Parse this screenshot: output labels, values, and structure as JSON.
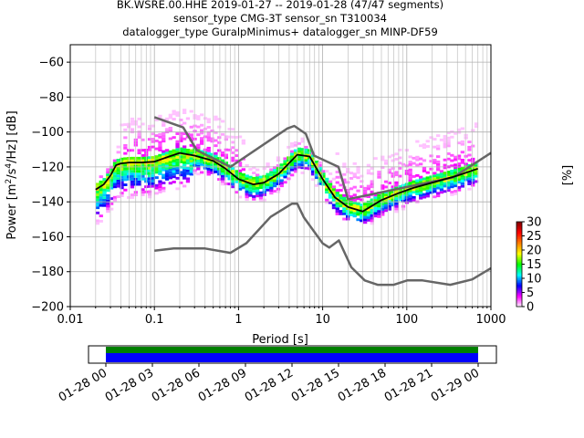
{
  "chart_data": {
    "type": "heatmap",
    "title_lines": [
      "BK.WSRE.00.HHE   2019-01-27 -- 2019-01-28  (47/47 segments)",
      "sensor_type CMG-3T sensor_sn T310034",
      "datalogger_type GuralpMinimus+ datalogger_sn MINP-DF59"
    ],
    "xlabel": "Period [s]",
    "ylabel_parts": [
      "Power [m",
      "2",
      "/s",
      "4",
      "/Hz] [dB]"
    ],
    "x_scale": "log",
    "xlim": [
      0.01,
      1000
    ],
    "ylim": [
      -200,
      -50
    ],
    "x_ticks": [
      0.01,
      0.1,
      1,
      10,
      100,
      1000
    ],
    "x_tick_labels": [
      "0.01",
      "0.1",
      "1",
      "10",
      "100",
      "1000"
    ],
    "y_ticks": [
      -200,
      -180,
      -160,
      -140,
      -120,
      -100,
      -80,
      -60
    ],
    "y_tick_labels": [
      "−200",
      "−180",
      "−160",
      "−140",
      "−120",
      "−100",
      "−80",
      "−60"
    ],
    "grid": true,
    "colorbar": {
      "label": "[%]",
      "range": [
        0,
        30
      ],
      "ticks": [
        0,
        5,
        10,
        15,
        20,
        25,
        30
      ],
      "tick_labels": [
        "0",
        "5",
        "10",
        "15",
        "20",
        "25",
        "30"
      ],
      "colors": [
        "#ffffff",
        "#ff00ff",
        "#0000ff",
        "#00ffff",
        "#00ff00",
        "#ffff00",
        "#ff8000",
        "#ff0000",
        "#800000"
      ]
    },
    "series": [
      {
        "role": "new-high-noise-model",
        "color": "#666666",
        "x": [
          0.1,
          0.22,
          0.32,
          0.8,
          3.8,
          4.6,
          6.3,
          7.9,
          15.4,
          20,
          354.8,
          1000
        ],
        "y": [
          -91.5,
          -97.4,
          -110.5,
          -120,
          -98,
          -96.5,
          -101,
          -113.5,
          -120,
          -138.5,
          -126,
          -112
        ]
      },
      {
        "role": "new-low-noise-model",
        "color": "#666666",
        "x": [
          0.1,
          0.17,
          0.4,
          0.8,
          1.24,
          2.4,
          4.3,
          5,
          6,
          10,
          12,
          15.6,
          21.9,
          31.6,
          45,
          70,
          101,
          154,
          328,
          600,
          1000
        ],
        "y": [
          -168,
          -166.7,
          -166.7,
          -169.2,
          -163.7,
          -148.6,
          -141.1,
          -141.1,
          -149,
          -163.8,
          -166.2,
          -162.1,
          -177.5,
          -185,
          -187.5,
          -187.5,
          -185,
          -185,
          -187.5,
          -184.4,
          -178
        ]
      },
      {
        "role": "mode",
        "color": "#000000",
        "x": [
          0.02,
          0.025,
          0.03,
          0.035,
          0.04,
          0.05,
          0.07,
          0.1,
          0.15,
          0.2,
          0.3,
          0.5,
          0.7,
          1,
          1.5,
          2,
          3,
          5,
          7,
          10,
          14,
          20,
          30,
          50,
          80,
          120,
          200,
          400,
          700
        ],
        "y": [
          -133,
          -130,
          -125,
          -119,
          -118,
          -117.5,
          -117.5,
          -117,
          -114,
          -112,
          -113.5,
          -116.5,
          -121,
          -127,
          -130,
          -129,
          -124,
          -113,
          -114,
          -127,
          -137.5,
          -143,
          -145.5,
          -139,
          -135,
          -132,
          -129,
          -125,
          -121
        ]
      }
    ],
    "time_axis": {
      "tick_labels": [
        "01-28 00",
        "01-28 03",
        "01-28 06",
        "01-28 09",
        "01-28 12",
        "01-28 15",
        "01-28 18",
        "01-28 21",
        "01-29 00"
      ],
      "coverage_start": "01-28 00",
      "coverage_end": "01-29 00",
      "bar_colors": [
        "#008000",
        "#0000ff"
      ]
    }
  }
}
